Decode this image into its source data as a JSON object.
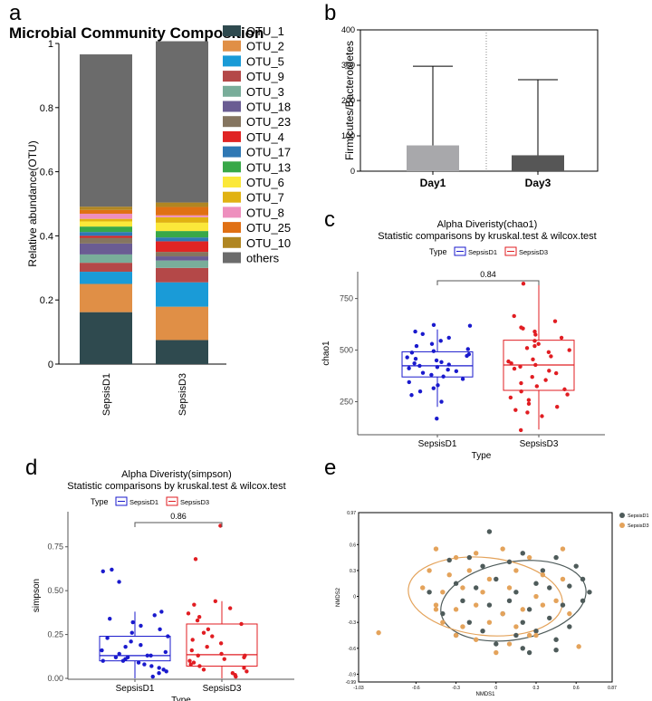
{
  "chart_data": [
    {
      "panel": "a",
      "type": "bar",
      "stacked": true,
      "title": "Microbial Community Composition",
      "xlabel": "",
      "ylabel": "Relative abundance(OTU)",
      "ylim": [
        0,
        1
      ],
      "yticks": [
        "0",
        "0.2",
        "0.4",
        "0.6",
        "0.8",
        "1"
      ],
      "categories": [
        "SepsisD1",
        "SepsisD3"
      ],
      "series": [
        {
          "name": "OTU_1",
          "color": "#2f4a4f",
          "values": [
            0.162,
            0.075
          ]
        },
        {
          "name": "OTU_2",
          "color": "#e08f46",
          "values": [
            0.088,
            0.104
          ]
        },
        {
          "name": "OTU_5",
          "color": "#1a9bd7",
          "values": [
            0.038,
            0.076
          ]
        },
        {
          "name": "OTU_9",
          "color": "#b44848",
          "values": [
            0.028,
            0.045
          ]
        },
        {
          "name": "OTU_3",
          "color": "#79ad9a",
          "values": [
            0.026,
            0.023
          ]
        },
        {
          "name": "OTU_18",
          "color": "#6a5c93",
          "values": [
            0.034,
            0.013
          ]
        },
        {
          "name": "OTU_23",
          "color": "#857560",
          "values": [
            0.018,
            0.014
          ]
        },
        {
          "name": "OTU_4",
          "color": "#e02424",
          "values": [
            0.006,
            0.033
          ]
        },
        {
          "name": "OTU_17",
          "color": "#2f78b4",
          "values": [
            0.012,
            0.012
          ]
        },
        {
          "name": "OTU_13",
          "color": "#38a848",
          "values": [
            0.017,
            0.02
          ]
        },
        {
          "name": "OTU_6",
          "color": "#fbe83a",
          "values": [
            0.016,
            0.026
          ]
        },
        {
          "name": "OTU_7",
          "color": "#e1b212",
          "values": [
            0.008,
            0.017
          ]
        },
        {
          "name": "OTU_8",
          "color": "#ee8fbe",
          "values": [
            0.016,
            0.006
          ]
        },
        {
          "name": "OTU_25",
          "color": "#e07014",
          "values": [
            0.012,
            0.026
          ]
        },
        {
          "name": "OTU_10",
          "color": "#b08622",
          "values": [
            0.01,
            0.014
          ]
        },
        {
          "name": "others",
          "color": "#6b6b6b",
          "values": [
            0.475,
            0.503
          ]
        }
      ]
    },
    {
      "panel": "b",
      "type": "bar",
      "title": "",
      "xlabel": "",
      "ylabel": "Firmicutes/Bacteroidetes",
      "ylim": [
        0,
        400
      ],
      "yticks": [
        "0",
        "100",
        "200",
        "300",
        "400"
      ],
      "categories": [
        "Day1",
        "Day3"
      ],
      "values": [
        73,
        45
      ],
      "upper_error": [
        297,
        259
      ],
      "colors": [
        "#a8a8ab",
        "#565656"
      ]
    },
    {
      "panel": "c",
      "type": "box",
      "title": "Alpha Diveristy(chao1)",
      "subtitle": "Statistic comparisons by kruskal.test & wilcox.test",
      "legend_title": "Type",
      "xlabel": "Type",
      "ylabel": "chao1",
      "ylim": [
        90,
        880
      ],
      "yticks": [
        250,
        500,
        750
      ],
      "ytick_labels": [
        "250",
        "500",
        "750"
      ],
      "pvalue": "0.84",
      "groups": [
        {
          "name": "SepsisD1",
          "color": "#1a1acd",
          "whisker_low": 225,
          "q1": 370,
          "median": 424,
          "q3": 492,
          "whisker_high": 600,
          "points": [
            168,
            250,
            282,
            300,
            315,
            330,
            345,
            360,
            372,
            380,
            390,
            398,
            405,
            412,
            418,
            424,
            430,
            436,
            442,
            450,
            458,
            465,
            472,
            480,
            488,
            495,
            505,
            520,
            530,
            545,
            560,
            578,
            590,
            618,
            622
          ]
        },
        {
          "name": "SepsisD3",
          "color": "#e11d22",
          "whisker_low": 115,
          "q1": 305,
          "median": 428,
          "q3": 548,
          "whisker_high": 822,
          "points": [
            112,
            180,
            198,
            210,
            225,
            240,
            258,
            270,
            285,
            300,
            310,
            325,
            340,
            355,
            370,
            388,
            400,
            410,
            420,
            428,
            436,
            445,
            455,
            470,
            490,
            500,
            510,
            520,
            530,
            545,
            560,
            575,
            590,
            605,
            610,
            640,
            665,
            822
          ]
        }
      ]
    },
    {
      "panel": "d",
      "type": "box",
      "title": "Alpha Diveristy(simpson)",
      "subtitle": "Statistic comparisons by kruskal.test & wilcox.test",
      "legend_title": "Type",
      "xlabel": "Type",
      "ylabel": "simpson",
      "ylim": [
        -0.005,
        0.95
      ],
      "yticks": [
        0,
        0.25,
        0.5,
        0.75
      ],
      "ytick_labels": [
        "0.00",
        "0.25",
        "0.50",
        "0.75"
      ],
      "pvalue": "0.86",
      "groups": [
        {
          "name": "SepsisD1",
          "color": "#1a1acd",
          "whisker_low": 0.0,
          "q1": 0.1,
          "median": 0.13,
          "q3": 0.24,
          "whisker_high": 0.38,
          "points": [
            0.01,
            0.03,
            0.04,
            0.05,
            0.06,
            0.07,
            0.08,
            0.09,
            0.1,
            0.1,
            0.11,
            0.12,
            0.12,
            0.13,
            0.13,
            0.14,
            0.15,
            0.16,
            0.18,
            0.19,
            0.21,
            0.23,
            0.24,
            0.26,
            0.28,
            0.3,
            0.32,
            0.34,
            0.36,
            0.38,
            0.55,
            0.61,
            0.62
          ]
        },
        {
          "name": "SepsisD3",
          "color": "#e11d22",
          "whisker_low": 0.0,
          "q1": 0.07,
          "median": 0.135,
          "q3": 0.31,
          "whisker_high": 0.44,
          "points": [
            0.01,
            0.02,
            0.03,
            0.04,
            0.05,
            0.06,
            0.07,
            0.08,
            0.09,
            0.1,
            0.11,
            0.12,
            0.13,
            0.13,
            0.14,
            0.16,
            0.18,
            0.2,
            0.22,
            0.24,
            0.26,
            0.28,
            0.31,
            0.33,
            0.35,
            0.37,
            0.4,
            0.42,
            0.44,
            0.68,
            0.87
          ]
        }
      ]
    },
    {
      "panel": "e",
      "type": "scatter",
      "title": "",
      "xlabel": "NMDS1",
      "ylabel": "NMDS2",
      "xlim": [
        -1.03,
        0.87
      ],
      "ylim": [
        -0.99,
        0.97
      ],
      "xticks": [
        -0.6,
        -0.3,
        0,
        0.3,
        0.6
      ],
      "yticks": [
        -0.9,
        -0.6,
        -0.3,
        0,
        0.3,
        0.6
      ],
      "xtick_labels": [
        "-0.6",
        "-0.3",
        "0",
        "0.3",
        "0.6"
      ],
      "ytick_labels": [
        "-0.9",
        "-0.6",
        "-0.3",
        "0",
        "0.3",
        "0.6"
      ],
      "xlim_labels": [
        "-1.03",
        "0.87"
      ],
      "ylim_labels": [
        "-0.99",
        "0.97"
      ],
      "series": [
        {
          "name": "SepsisD1",
          "color": "#4e5b5a",
          "ellipse": {
            "cx": 0.13,
            "cy": -0.05,
            "rx": 0.55,
            "ry": 0.45,
            "angle": -10
          },
          "x": [
            -0.05,
            -0.35,
            -0.2,
            -0.1,
            0.1,
            0.2,
            0.35,
            0.45,
            0.6,
            0.65,
            0.7,
            -0.3,
            -0.15,
            0.0,
            0.15,
            0.3,
            0.4,
            0.55,
            -0.25,
            -0.05,
            0.1,
            0.25,
            0.5,
            0.65,
            -0.4,
            -0.2,
            0.05,
            0.2,
            0.4,
            -0.3,
            -0.1,
            0.15,
            0.3,
            0.45,
            0.0,
            0.2,
            -0.5,
            0.55,
            0.45,
            0.25
          ],
          "y": [
            0.75,
            0.42,
            0.45,
            0.35,
            0.4,
            0.5,
            0.3,
            0.45,
            0.35,
            0.2,
            0.05,
            0.15,
            0.1,
            0.2,
            0.05,
            0.15,
            0.1,
            0.12,
            -0.05,
            -0.1,
            -0.05,
            -0.15,
            -0.1,
            -0.05,
            -0.2,
            -0.3,
            -0.2,
            -0.3,
            -0.25,
            -0.45,
            -0.4,
            -0.45,
            -0.4,
            -0.5,
            -0.55,
            -0.6,
            0.05,
            -0.35,
            -0.62,
            -0.65
          ]
        },
        {
          "name": "SepsisD3",
          "color": "#e4a35b",
          "ellipse": {
            "cx": -0.08,
            "cy": 0.0,
            "rx": 0.58,
            "ry": 0.45,
            "angle": 6
          },
          "x": [
            -0.88,
            -0.45,
            -0.3,
            -0.15,
            0.05,
            0.25,
            0.5,
            -0.5,
            -0.35,
            -0.2,
            -0.05,
            0.15,
            0.35,
            0.5,
            -0.55,
            -0.4,
            -0.25,
            -0.1,
            0.1,
            0.3,
            0.45,
            -0.45,
            -0.3,
            -0.15,
            0.05,
            0.2,
            0.35,
            -0.4,
            -0.25,
            -0.05,
            0.15,
            0.3,
            -0.3,
            -0.15,
            0.1,
            0.25,
            0.55,
            -0.45,
            0.0,
            0.62
          ],
          "y": [
            -0.42,
            0.55,
            0.45,
            0.5,
            0.55,
            0.45,
            0.55,
            0.3,
            0.25,
            0.3,
            0.2,
            0.3,
            0.25,
            0.2,
            0.1,
            0.05,
            0.1,
            0.05,
            0.1,
            0.0,
            -0.05,
            -0.1,
            -0.15,
            -0.1,
            -0.2,
            -0.15,
            -0.1,
            -0.3,
            -0.35,
            -0.3,
            -0.35,
            -0.45,
            -0.45,
            -0.5,
            -0.55,
            -0.45,
            -0.2,
            -0.15,
            -0.65,
            -0.58
          ]
        }
      ]
    }
  ],
  "labels": {
    "panel_a": "a",
    "panel_b": "b",
    "panel_c": "c",
    "panel_d": "d",
    "panel_e": "e"
  }
}
